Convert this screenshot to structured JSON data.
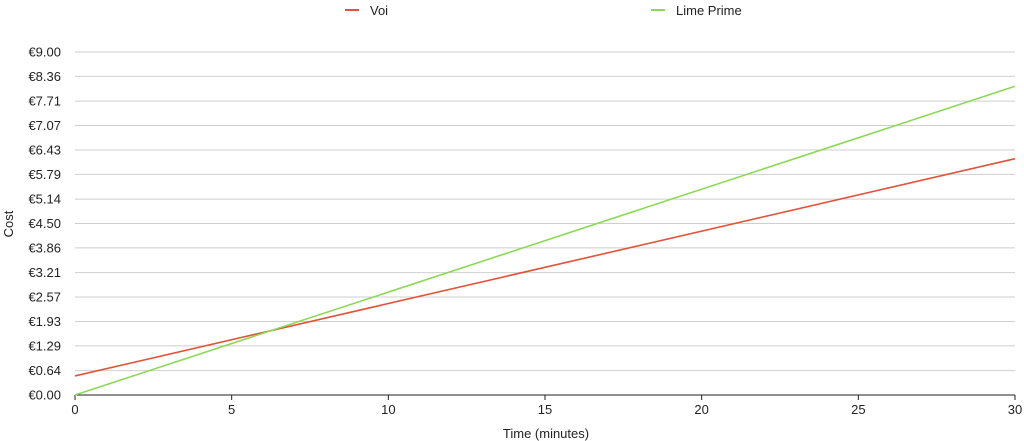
{
  "chart_data": {
    "type": "line",
    "title": "",
    "xlabel": "Time (minutes)",
    "ylabel": "Cost",
    "xlim": [
      0,
      30
    ],
    "ylim": [
      0,
      9.0
    ],
    "x_ticks": [
      0,
      5,
      10,
      15,
      20,
      25,
      30
    ],
    "x_tick_labels": [
      "0",
      "5",
      "10",
      "15",
      "20",
      "25",
      "30"
    ],
    "y_ticks": [
      0,
      0.64,
      1.29,
      1.93,
      2.57,
      3.21,
      3.86,
      4.5,
      5.14,
      5.79,
      6.43,
      7.07,
      7.71,
      8.36,
      9.0
    ],
    "y_tick_labels": [
      "€0.00",
      "€0.64",
      "€1.29",
      "€1.93",
      "€2.57",
      "€3.21",
      "€3.86",
      "€4.50",
      "€5.14",
      "€5.79",
      "€6.43",
      "€7.07",
      "€7.71",
      "€8.36",
      "€9.00"
    ],
    "grid": true,
    "legend_position": "top",
    "series": [
      {
        "name": "Voi",
        "color": "#e0533a",
        "x": [
          0,
          30
        ],
        "y": [
          0.5,
          6.2
        ]
      },
      {
        "name": "Lime Prime",
        "color": "#8cd958",
        "x": [
          0,
          30
        ],
        "y": [
          0,
          8.1
        ]
      }
    ]
  }
}
